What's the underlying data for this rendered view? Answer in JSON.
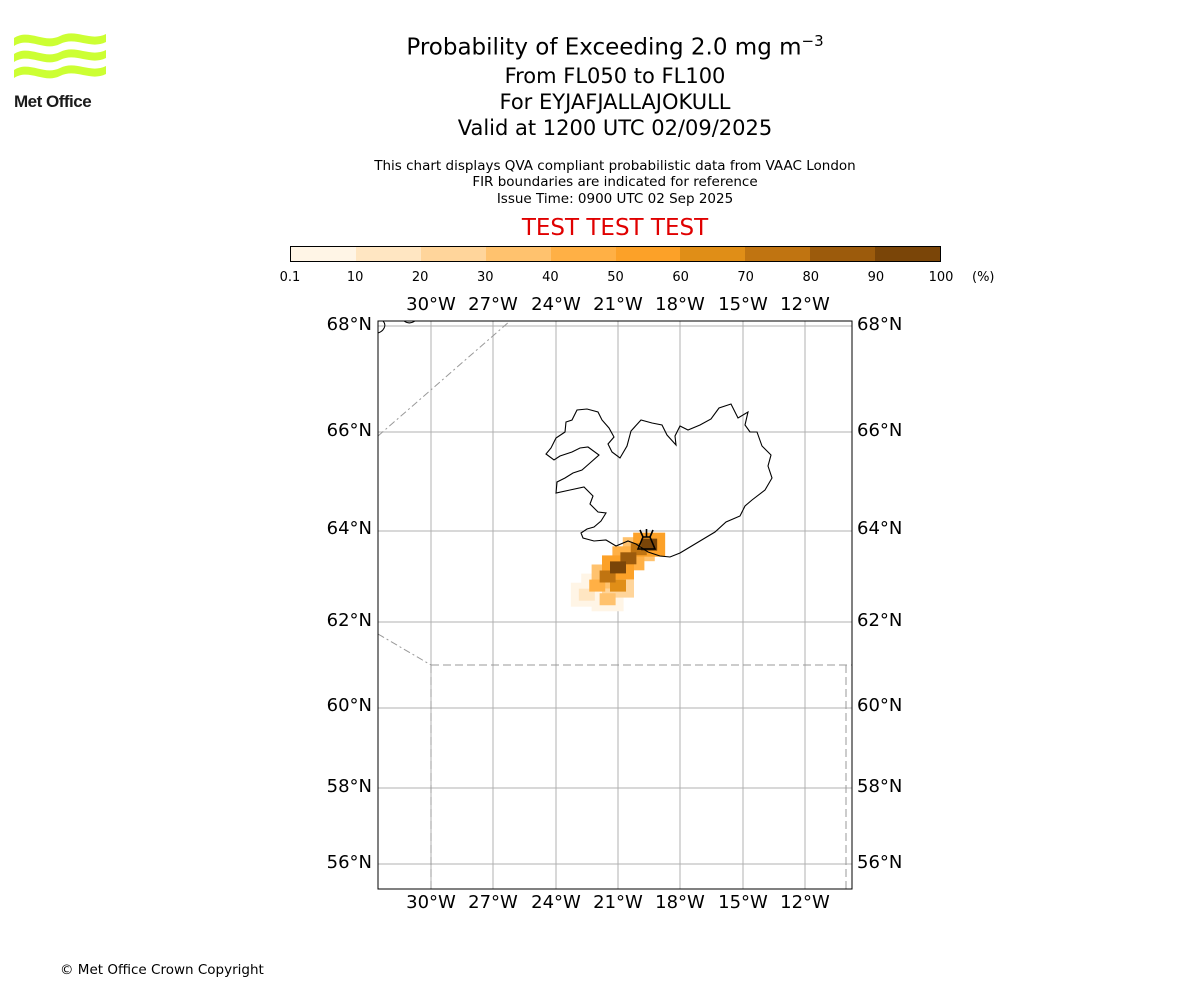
{
  "logo": {
    "text": "Met Office",
    "color": "#ccff33"
  },
  "title": {
    "line1_prefix": "Probability of Exceeding 2.0 mg m",
    "line1_sup": "−3",
    "line2": "From FL050 to FL100",
    "line3": "For EYJAFJALLAJOKULL",
    "line4": "Valid at 1200 UTC 02/09/2025"
  },
  "subtitle": {
    "line1": "This chart displays QVA compliant probabilistic data from VAAC London",
    "line2": "FIR boundaries are indicated for reference",
    "line3": "Issue Time: 0900 UTC 02 Sep 2025"
  },
  "test_banner": "TEST TEST TEST",
  "colorbar": {
    "ticks": [
      "0.1",
      "10",
      "20",
      "30",
      "40",
      "50",
      "60",
      "70",
      "80",
      "90",
      "100"
    ],
    "unit": "(%)",
    "colors": [
      "#fff5e6",
      "#ffe6c2",
      "#ffd59b",
      "#ffc26e",
      "#ffb045",
      "#fca128",
      "#e08e17",
      "#c07411",
      "#9c5b0c",
      "#7a4508"
    ]
  },
  "map": {
    "lon_labels": [
      "30°W",
      "27°W",
      "24°W",
      "21°W",
      "18°W",
      "15°W",
      "12°W"
    ],
    "lat_labels": [
      "68°N",
      "66°N",
      "64°N",
      "62°N",
      "60°N",
      "58°N",
      "56°N"
    ],
    "volcano_marker": "volcano-icon",
    "plume_probability_percent": [
      {
        "lon": -19.5,
        "lat": 63.7,
        "p": 95
      },
      {
        "lon": -20.0,
        "lat": 63.6,
        "p": 70
      },
      {
        "lon": -20.5,
        "lat": 63.4,
        "p": 85
      },
      {
        "lon": -21.0,
        "lat": 63.2,
        "p": 90
      },
      {
        "lon": -21.5,
        "lat": 63.0,
        "p": 75
      },
      {
        "lon": -21.0,
        "lat": 62.8,
        "p": 60
      },
      {
        "lon": -22.0,
        "lat": 62.8,
        "p": 40
      },
      {
        "lon": -21.5,
        "lat": 62.5,
        "p": 35
      },
      {
        "lon": -22.5,
        "lat": 62.6,
        "p": 10
      }
    ]
  },
  "copyright": "© Met Office Crown Copyright"
}
